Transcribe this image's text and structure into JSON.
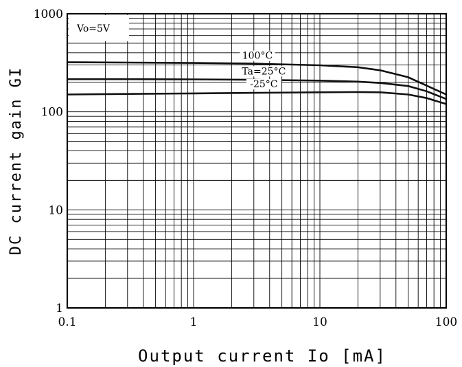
{
  "chart_data": {
    "type": "line",
    "xscale": "log",
    "yscale": "log",
    "xlim": [
      0.1,
      100
    ],
    "ylim": [
      1,
      1000
    ],
    "xticks": [
      "0.1",
      "1",
      "10",
      "100"
    ],
    "yticks": [
      "1",
      "10",
      "100",
      "1000"
    ],
    "xlabel": "Output current Io [mA]",
    "ylabel": "DC current gain GI",
    "condition": "Vo=5V",
    "grid": true,
    "series": [
      {
        "name": "100°C",
        "x": [
          0.1,
          0.3,
          1,
          3,
          10,
          20,
          30,
          50,
          70,
          100
        ],
        "y": [
          320,
          318,
          315,
          310,
          298,
          285,
          265,
          225,
          185,
          150
        ]
      },
      {
        "name": "Ta=25°C",
        "x": [
          0.1,
          0.3,
          1,
          3,
          10,
          20,
          30,
          50,
          70,
          100
        ],
        "y": [
          215,
          215,
          214,
          212,
          208,
          203,
          197,
          183,
          162,
          135
        ]
      },
      {
        "name": "-25°C",
        "x": [
          0.1,
          0.3,
          1,
          3,
          10,
          20,
          30,
          50,
          70,
          100
        ],
        "y": [
          150,
          152,
          154,
          156,
          158,
          159,
          158,
          150,
          138,
          120
        ]
      }
    ]
  }
}
